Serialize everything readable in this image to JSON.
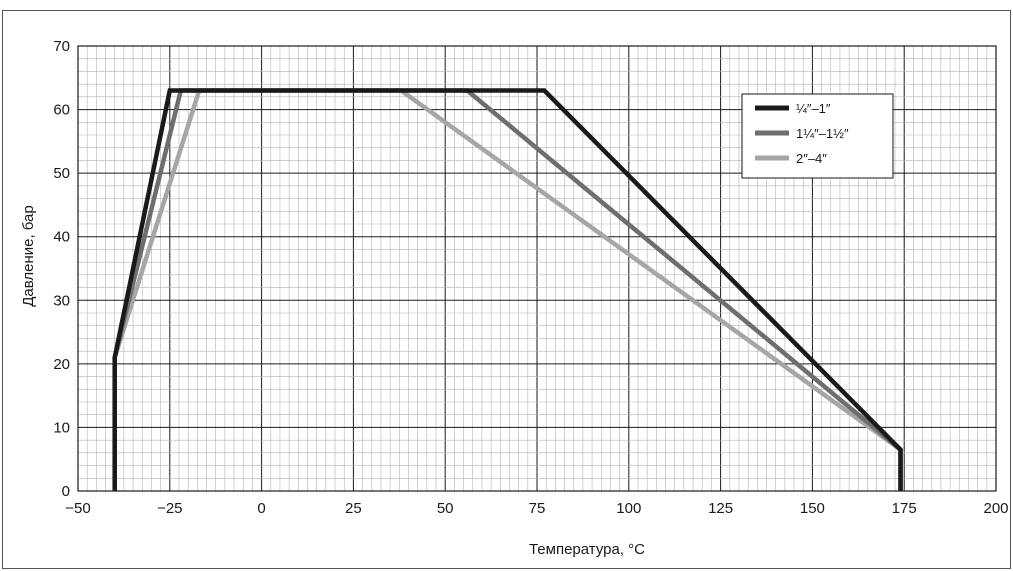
{
  "chart_data": {
    "type": "line",
    "xlabel": "Температура, °C",
    "ylabel": "Давление, бар",
    "xlim": [
      -50,
      200
    ],
    "ylim": [
      0,
      70
    ],
    "x_ticks": [
      -50,
      -25,
      0,
      25,
      50,
      75,
      100,
      125,
      150,
      175,
      200
    ],
    "x_tick_labels": [
      "−50",
      "−25",
      "0",
      "25",
      "50",
      "75",
      "100",
      "125",
      "150",
      "175",
      "200"
    ],
    "y_ticks": [
      0,
      10,
      20,
      30,
      40,
      50,
      60,
      70
    ],
    "y_tick_labels": [
      "0",
      "10",
      "20",
      "30",
      "40",
      "50",
      "60",
      "70"
    ],
    "grid": true,
    "legend_position": "top-right",
    "series": [
      {
        "name": "¼″–1″",
        "color": "#1a1a1a",
        "points": [
          [
            -40,
            0
          ],
          [
            -40,
            21
          ],
          [
            -25,
            63
          ],
          [
            77,
            63
          ],
          [
            174,
            6.5
          ],
          [
            174,
            0
          ]
        ]
      },
      {
        "name": "1¼″–1½″",
        "color": "#6e6e6e",
        "points": [
          [
            -40,
            0
          ],
          [
            -40,
            21
          ],
          [
            -22,
            63
          ],
          [
            56,
            63
          ],
          [
            174,
            6.5
          ],
          [
            174,
            0
          ]
        ]
      },
      {
        "name": "2″–4″",
        "color": "#a6a6a6",
        "points": [
          [
            -40,
            0
          ],
          [
            -40,
            21
          ],
          [
            -17,
            63
          ],
          [
            38,
            63
          ],
          [
            174,
            6.5
          ],
          [
            174,
            0
          ]
        ]
      }
    ]
  }
}
